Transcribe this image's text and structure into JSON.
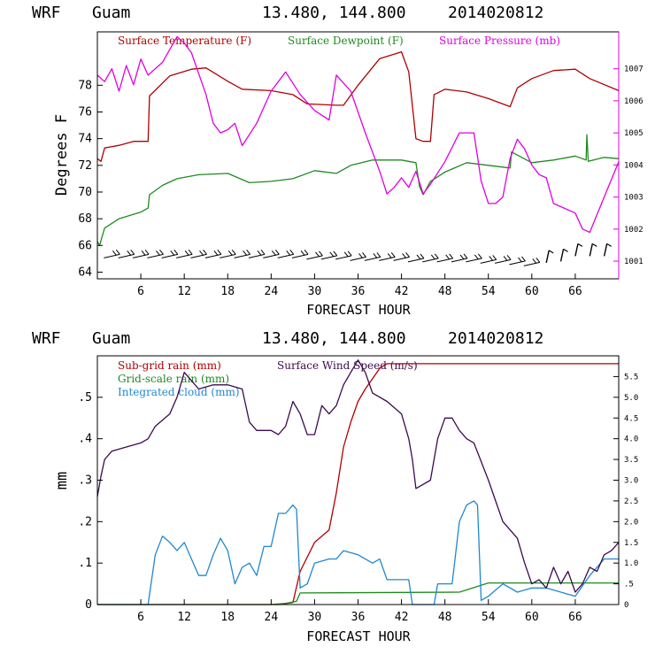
{
  "chart_data": [
    {
      "type": "line",
      "header": {
        "model": "WRF",
        "location": "Guam",
        "coords": "13.480, 144.800",
        "run": "2014020812"
      },
      "xlabel": "FORECAST HOUR",
      "ylabel": "Degrees F",
      "xlim": [
        0,
        72
      ],
      "ylim": [
        63.5,
        82
      ],
      "right_ylim": [
        1000.45,
        1008.15
      ],
      "x_ticks": [
        "6",
        "12",
        "18",
        "24",
        "30",
        "36",
        "42",
        "48",
        "54",
        "60",
        "66"
      ],
      "x_tick_values": [
        6,
        12,
        18,
        24,
        30,
        36,
        42,
        48,
        54,
        60,
        66
      ],
      "y_ticks": [
        "64",
        "66",
        "68",
        "70",
        "72",
        "74",
        "76",
        "78"
      ],
      "y_tick_values": [
        64,
        66,
        68,
        70,
        72,
        74,
        76,
        78
      ],
      "right_ticks": [
        "1001",
        "1002",
        "1003",
        "1004",
        "1005",
        "1006",
        "1007"
      ],
      "right_tick_values": [
        1001,
        1002,
        1003,
        1004,
        1005,
        1006,
        1007
      ],
      "colors": {
        "temperature": "#b00000",
        "dewpoint": "#1f8a1f",
        "pressure": "#e000e0",
        "wind": "#000000"
      },
      "series": [
        {
          "name": "Surface Temperature (F)",
          "axis": "left",
          "color": "#b00000",
          "x": [
            0,
            0.5,
            1,
            3,
            5,
            7,
            7.2,
            10,
            13,
            15,
            18,
            20,
            24,
            27,
            29,
            33,
            34,
            36,
            39,
            42,
            43,
            44,
            45,
            46,
            46.5,
            48,
            51,
            54,
            57,
            58,
            60,
            63,
            66,
            68,
            72
          ],
          "y": [
            72.5,
            72.3,
            73.3,
            73.5,
            73.8,
            73.8,
            77.2,
            78.7,
            79.2,
            79.3,
            78.3,
            77.7,
            77.6,
            77.3,
            76.6,
            76.5,
            76.5,
            78.0,
            80.0,
            80.5,
            79.0,
            74.0,
            73.8,
            73.8,
            77.3,
            77.7,
            77.5,
            77.0,
            76.4,
            77.8,
            78.5,
            79.1,
            79.2,
            78.5,
            77.6
          ]
        },
        {
          "name": "Surface Dewpoint (F)",
          "axis": "left",
          "color": "#1f8a1f",
          "x": [
            0,
            0.3,
            1,
            3,
            6,
            7,
            7.2,
            9,
            11,
            14,
            18,
            21,
            24,
            27,
            30,
            33,
            35,
            38,
            42,
            44,
            44.5,
            45,
            46,
            48,
            51,
            54,
            57,
            57.2,
            60,
            63,
            66,
            67.5,
            67.6,
            67.8,
            70,
            72
          ],
          "y": [
            66.3,
            66.0,
            67.3,
            68.0,
            68.5,
            68.8,
            69.8,
            70.5,
            71.0,
            71.3,
            71.4,
            70.7,
            70.8,
            71.0,
            71.6,
            71.4,
            72.0,
            72.4,
            72.4,
            72.2,
            70.4,
            69.8,
            70.8,
            71.5,
            72.2,
            72.0,
            71.8,
            73.0,
            72.2,
            72.4,
            72.7,
            72.4,
            74.3,
            72.3,
            72.6,
            72.5
          ]
        },
        {
          "name": "Surface Pressure (mb)",
          "axis": "right",
          "color": "#e000e0",
          "x": [
            0,
            1,
            2,
            3,
            4,
            5,
            6,
            7,
            9,
            11,
            12,
            13,
            15,
            16,
            17,
            18,
            19,
            20,
            22,
            24,
            26,
            28,
            30,
            32,
            33,
            35,
            37,
            39,
            40,
            41,
            42,
            43,
            44,
            45,
            46,
            48,
            50,
            52,
            53,
            54,
            55,
            56,
            57,
            58,
            59,
            60,
            61,
            62,
            63,
            64,
            66,
            67,
            68,
            70,
            72
          ],
          "y": [
            1006.8,
            1006.6,
            1007.0,
            1006.3,
            1007.1,
            1006.5,
            1007.3,
            1006.8,
            1007.2,
            1008.0,
            1007.8,
            1007.5,
            1006.2,
            1005.3,
            1005.0,
            1005.1,
            1005.3,
            1004.6,
            1005.3,
            1006.3,
            1006.9,
            1006.2,
            1005.7,
            1005.4,
            1006.8,
            1006.3,
            1005.0,
            1003.8,
            1003.1,
            1003.3,
            1003.6,
            1003.3,
            1003.8,
            1003.1,
            1003.4,
            1004.1,
            1005.0,
            1005.0,
            1003.5,
            1002.8,
            1002.8,
            1003.0,
            1004.2,
            1004.8,
            1004.5,
            1004.0,
            1003.7,
            1003.6,
            1002.8,
            1002.7,
            1002.5,
            1002.0,
            1001.9,
            1003.0,
            1004.1
          ]
        },
        {
          "name": "Wind barbs",
          "axis": "left",
          "color": "#000000",
          "x": [
            2,
            4,
            6,
            8,
            10,
            12,
            14,
            16,
            18,
            20,
            22,
            24,
            26,
            28,
            30,
            32,
            34,
            36,
            38,
            40,
            42,
            44,
            46,
            48,
            50,
            52,
            54,
            56,
            58,
            60,
            62,
            64,
            66,
            68,
            70
          ],
          "y": [
            65.2,
            65.2,
            65.2,
            65.2,
            65.2,
            65.2,
            65.2,
            65.2,
            65.2,
            65.2,
            65.2,
            65.2,
            65.2,
            65.2,
            65.1,
            65.1,
            65.1,
            65.0,
            65.0,
            65.0,
            65.0,
            64.9,
            64.9,
            64.9,
            64.9,
            64.9,
            64.8,
            64.8,
            64.7,
            64.6,
            64.7,
            64.8,
            65.2,
            65.2,
            65.2
          ]
        }
      ],
      "legend": [
        {
          "label": "Surface Temperature (F)",
          "color": "#b00000"
        },
        {
          "label": "Surface Dewpoint (F)",
          "color": "#1f8a1f"
        },
        {
          "label": "Surface Pressure (mb)",
          "color": "#e000e0"
        }
      ]
    },
    {
      "type": "line",
      "header": {
        "model": "WRF",
        "location": "Guam",
        "coords": "13.480, 144.800",
        "run": "2014020812"
      },
      "xlabel": "FORECAST HOUR",
      "ylabel": "mm",
      "xlim": [
        0,
        72
      ],
      "ylim": [
        0,
        0.6
      ],
      "right_ylim": [
        0,
        6.0
      ],
      "x_ticks": [
        "6",
        "12",
        "18",
        "24",
        "30",
        "36",
        "42",
        "48",
        "54",
        "60",
        "66"
      ],
      "x_tick_values": [
        6,
        12,
        18,
        24,
        30,
        36,
        42,
        48,
        54,
        60,
        66
      ],
      "y_ticks": [
        "0",
        ".1",
        ".2",
        ".3",
        ".4",
        ".5"
      ],
      "y_tick_values": [
        0,
        0.1,
        0.2,
        0.3,
        0.4,
        0.5
      ],
      "right_ticks": [
        "0",
        ".5",
        "1.0",
        "1.5",
        "2.0",
        "2.5",
        "3.0",
        "3.5",
        "4.0",
        "4.5",
        "5.0",
        "5.5"
      ],
      "right_tick_values": [
        0,
        0.5,
        1.0,
        1.5,
        2.0,
        2.5,
        3.0,
        3.5,
        4.0,
        4.5,
        5.0,
        5.5
      ],
      "colors": {
        "subgrid": "#b00000",
        "gridscale": "#1f8a1f",
        "cloud": "#1f88d0",
        "wind": "#3c0a50"
      },
      "series": [
        {
          "name": "Sub-grid rain (mm)",
          "axis": "left",
          "color": "#b00000",
          "x": [
            0,
            25,
            27,
            28,
            30,
            32,
            33,
            34,
            35,
            36,
            37,
            39,
            40,
            72
          ],
          "y": [
            0,
            0,
            0.005,
            0.08,
            0.15,
            0.18,
            0.27,
            0.38,
            0.44,
            0.49,
            0.52,
            0.57,
            0.581,
            0.581
          ]
        },
        {
          "name": "Grid-scale rain (mm)",
          "axis": "left",
          "color": "#1f8a1f",
          "x": [
            0,
            24,
            26,
            27.5,
            28,
            50,
            54,
            72
          ],
          "y": [
            0,
            0,
            0.003,
            0.008,
            0.028,
            0.03,
            0.052,
            0.052
          ]
        },
        {
          "name": "Integrated cloud (mm)",
          "axis": "left",
          "color": "#1f88d0",
          "x": [
            0,
            7,
            8,
            9,
            10,
            11,
            12,
            13,
            14,
            15,
            16,
            17,
            18,
            19,
            20,
            21,
            22,
            23,
            24,
            25,
            26,
            27,
            27.5,
            28,
            29,
            30,
            32,
            33,
            34,
            36,
            38,
            39,
            40,
            42,
            43,
            43.5,
            46.5,
            47,
            48,
            49,
            50,
            51,
            52,
            52.5,
            53,
            54,
            56,
            58,
            60,
            62,
            64,
            66,
            68,
            70,
            71,
            72
          ],
          "y": [
            0,
            0,
            0.12,
            0.165,
            0.15,
            0.13,
            0.15,
            0.11,
            0.07,
            0.07,
            0.12,
            0.16,
            0.13,
            0.05,
            0.09,
            0.1,
            0.07,
            0.14,
            0.14,
            0.22,
            0.22,
            0.24,
            0.23,
            0.04,
            0.05,
            0.1,
            0.11,
            0.11,
            0.13,
            0.12,
            0.1,
            0.11,
            0.06,
            0.06,
            0.06,
            0,
            0,
            0.05,
            0.05,
            0.05,
            0.2,
            0.24,
            0.25,
            0.24,
            0.01,
            0.02,
            0.05,
            0.03,
            0.04,
            0.04,
            0.03,
            0.02,
            0.07,
            0.11,
            0.11,
            0.11
          ]
        },
        {
          "name": "Surface Wind Speed (m/s)",
          "axis": "right",
          "color": "#3c0a50",
          "x": [
            0,
            0.5,
            1,
            2,
            4,
            6,
            7,
            8,
            10,
            11,
            12,
            13,
            14,
            16,
            17,
            18,
            20,
            21,
            22,
            24,
            25,
            26,
            27,
            28,
            29,
            30,
            31,
            32,
            33,
            34,
            35,
            36,
            37,
            38,
            40,
            42,
            43,
            43.5,
            44,
            46,
            47,
            48,
            49,
            50,
            51,
            52,
            54,
            55,
            56,
            57,
            58,
            59,
            60,
            61,
            62,
            63,
            64,
            65,
            66,
            67,
            68,
            69,
            70,
            71,
            72
          ],
          "y": [
            2.6,
            3.1,
            3.5,
            3.7,
            3.8,
            3.9,
            4.0,
            4.3,
            4.6,
            5.0,
            5.6,
            5.4,
            5.2,
            5.3,
            5.3,
            5.3,
            5.2,
            4.4,
            4.2,
            4.2,
            4.1,
            4.3,
            4.9,
            4.6,
            4.1,
            4.1,
            4.8,
            4.6,
            4.8,
            5.3,
            5.6,
            5.9,
            5.6,
            5.1,
            4.9,
            4.6,
            4.0,
            3.5,
            2.8,
            3.0,
            4.0,
            4.5,
            4.5,
            4.2,
            4.0,
            3.9,
            3.0,
            2.5,
            2.0,
            1.8,
            1.6,
            1.0,
            0.5,
            0.6,
            0.4,
            0.9,
            0.5,
            0.8,
            0.3,
            0.5,
            0.9,
            0.8,
            1.2,
            1.3,
            1.5
          ]
        }
      ],
      "legend": [
        {
          "label": "Sub-grid rain (mm)",
          "color": "#b00000"
        },
        {
          "label": "Surface Wind Speed (m/s)",
          "color": "#3c0a50"
        },
        {
          "label": "Grid-scale rain (mm)",
          "color": "#1f8a1f"
        },
        {
          "label": "Integrated cloud (mm)",
          "color": "#1f88d0"
        }
      ]
    }
  ]
}
